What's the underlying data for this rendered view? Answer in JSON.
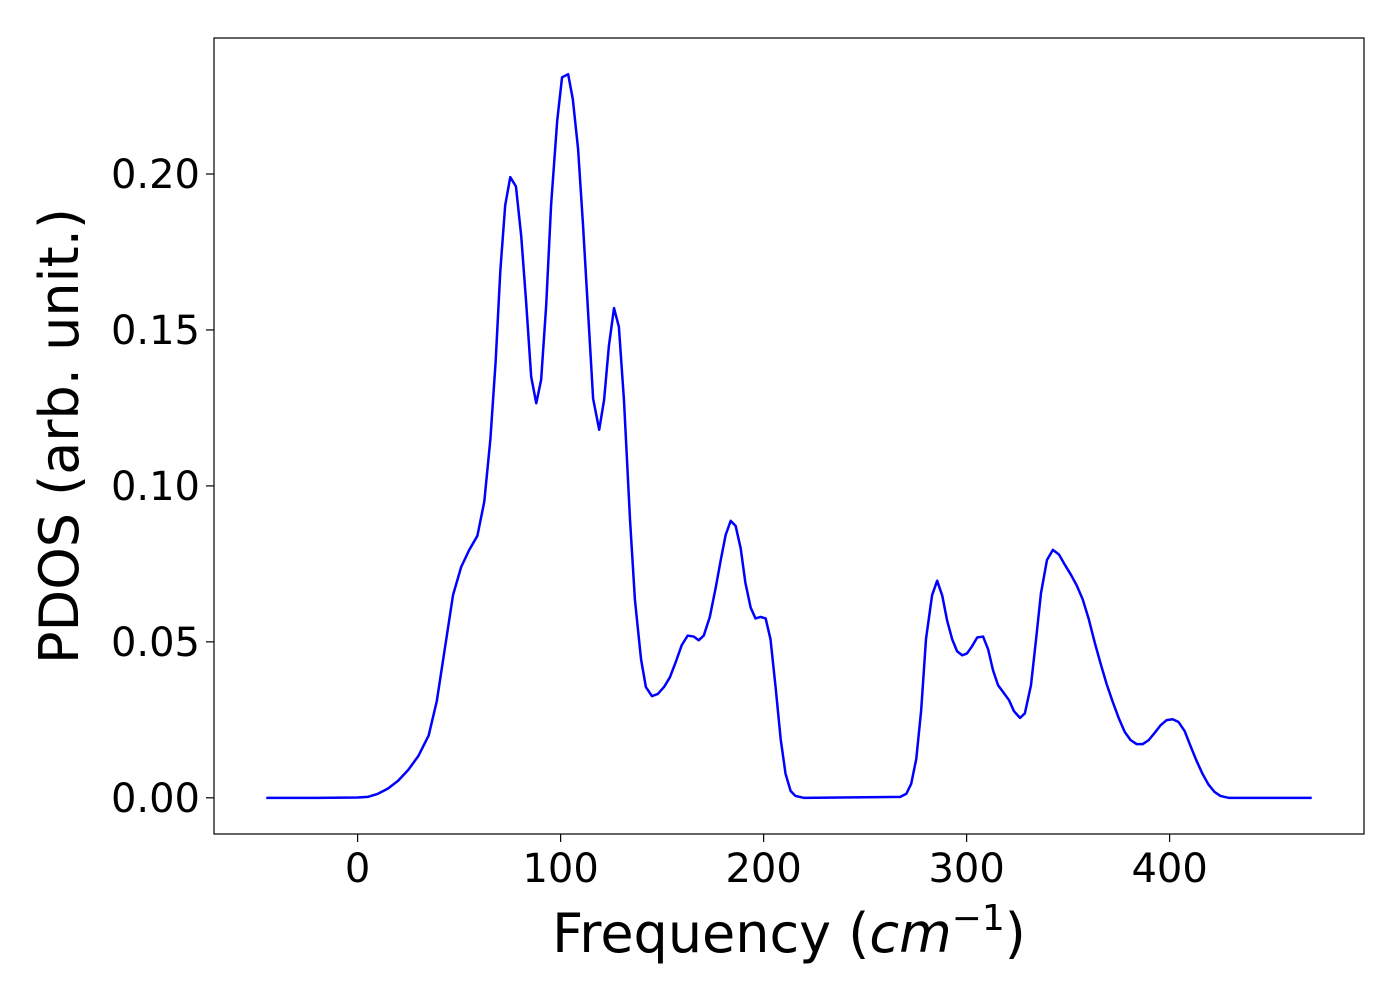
{
  "chart_data": {
    "type": "line",
    "xlabel": [
      "Frequency (",
      "cm",
      "−1",
      ")"
    ],
    "ylabel": "PDOS (arb. unit.)",
    "xlim": [
      -70.75,
      495.75
    ],
    "ylim": [
      -0.0116,
      0.2436
    ],
    "xticks": [
      0,
      100,
      200,
      300,
      400
    ],
    "yticks": [
      {
        "value": 0,
        "label": "0.00"
      },
      {
        "value": 0.05,
        "label": "0.05"
      },
      {
        "value": 0.1,
        "label": "0.10"
      },
      0.15,
      {
        "value": 0.2,
        "label": "0.20"
      }
    ],
    "grid": false,
    "series": [
      {
        "color": "#0000ff",
        "x": [
          -45,
          -20,
          0,
          5,
          10,
          15,
          20,
          25,
          30,
          35,
          39,
          43,
          47,
          51,
          55,
          59,
          62.4,
          65.4,
          68,
          70.3,
          72.7,
          75.2,
          78,
          80.6,
          83,
          85.5,
          88,
          90.4,
          92.9,
          95.3,
          98.3,
          100.7,
          103.7,
          106,
          108.6,
          111,
          113.5,
          116,
          119,
          121.4,
          123.8,
          126.3,
          128.7,
          131.2,
          134.2,
          136.6,
          139.6,
          142,
          145,
          147.9,
          150.9,
          153.8,
          156.8,
          159.7,
          162.6,
          165.6,
          168,
          170.5,
          173.5,
          176.4,
          178.9,
          181.3,
          183.8,
          186.2,
          188.7,
          191,
          193.6,
          196,
          198.5,
          201,
          203.4,
          206,
          208.4,
          210.8,
          213.3,
          215.7,
          219.7,
          267.3,
          270.3,
          272.7,
          275.2,
          277.6,
          280,
          283,
          285.5,
          288,
          290.4,
          292.9,
          295.3,
          297.8,
          300.2,
          302.6,
          305.2,
          308.1,
          310.6,
          313,
          315.5,
          318,
          320.9,
          323.3,
          326.3,
          328.7,
          331.7,
          334.2,
          336.6,
          339.6,
          342.5,
          345.5,
          348.4,
          351.4,
          354.3,
          357.2,
          360.2,
          363.1,
          366.1,
          369,
          372,
          374.9,
          377.9,
          380.8,
          383.8,
          386.7,
          389.7,
          392.6,
          395.6,
          398.5,
          401.5,
          404.4,
          407.4,
          410.3,
          413.3,
          416.2,
          419.2,
          422.1,
          425,
          429,
          470
        ],
        "values": [
          0,
          0,
          0.0001,
          0.0003,
          0.0013,
          0.003,
          0.0055,
          0.009,
          0.0135,
          0.02,
          0.031,
          0.048,
          0.065,
          0.074,
          0.0795,
          0.084,
          0.095,
          0.115,
          0.14,
          0.169,
          0.19,
          0.199,
          0.196,
          0.18,
          0.159,
          0.135,
          0.1265,
          0.134,
          0.158,
          0.19,
          0.217,
          0.231,
          0.232,
          0.224,
          0.208,
          0.184,
          0.156,
          0.128,
          0.118,
          0.1275,
          0.145,
          0.157,
          0.151,
          0.1275,
          0.089,
          0.0635,
          0.0445,
          0.0355,
          0.0326,
          0.0333,
          0.0355,
          0.0386,
          0.0437,
          0.049,
          0.052,
          0.0517,
          0.0505,
          0.052,
          0.058,
          0.0674,
          0.0763,
          0.0843,
          0.0888,
          0.0872,
          0.08,
          0.069,
          0.061,
          0.0575,
          0.058,
          0.0575,
          0.0508,
          0.0348,
          0.0188,
          0.0077,
          0.0022,
          0.0006,
          0,
          0.0003,
          0.0013,
          0.0045,
          0.0125,
          0.028,
          0.051,
          0.065,
          0.0696,
          0.0648,
          0.0568,
          0.0508,
          0.047,
          0.0457,
          0.0463,
          0.0485,
          0.0514,
          0.0517,
          0.0476,
          0.0409,
          0.0361,
          0.0339,
          0.0313,
          0.0278,
          0.0256,
          0.0271,
          0.0361,
          0.0508,
          0.0655,
          0.0763,
          0.0795,
          0.078,
          0.0747,
          0.0715,
          0.068,
          0.0636,
          0.0572,
          0.0498,
          0.0428,
          0.0364,
          0.0307,
          0.0256,
          0.0211,
          0.0185,
          0.0172,
          0.0172,
          0.0185,
          0.0208,
          0.0233,
          0.0249,
          0.0252,
          0.0243,
          0.0214,
          0.0166,
          0.0118,
          0.0077,
          0.0042,
          0.0019,
          0.0006,
          0,
          0
        ]
      }
    ]
  }
}
